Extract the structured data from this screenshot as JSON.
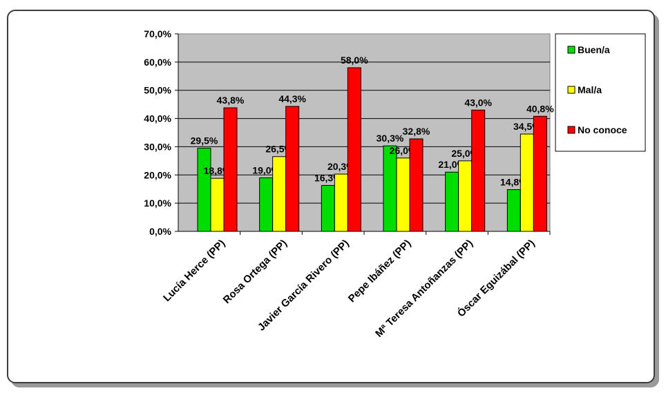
{
  "chart_data": {
    "type": "bar",
    "categories": [
      "Lucía Herce (PP)",
      "Rosa Ortega (PP)",
      "Javier García Rivero (PP)",
      "Pepe Ibáñez (PP)",
      "Mª Teresa Antoñanzas (PP)",
      "Óscar Eguizábal (PP)"
    ],
    "series": [
      {
        "name": "Buen/a",
        "color": "#00dd00",
        "values": [
          29.5,
          19.0,
          16.3,
          30.3,
          21.0,
          14.8
        ],
        "labels": [
          "29,5%",
          "19,0%",
          "16,3%",
          "30,3%",
          "21,0%",
          "14,8%"
        ]
      },
      {
        "name": "Mal/a",
        "color": "#ffff00",
        "values": [
          18.8,
          26.5,
          20.3,
          26.0,
          25.0,
          34.5
        ],
        "labels": [
          "18,8%",
          "26,5%",
          "20,3%",
          "26,0%",
          "25,0%",
          "34,5%"
        ]
      },
      {
        "name": "No conoce",
        "color": "#ff0000",
        "values": [
          43.8,
          44.3,
          58.0,
          32.8,
          43.0,
          40.8
        ],
        "labels": [
          "43,8%",
          "44,3%",
          "58,0%",
          "32,8%",
          "43,0%",
          "40,8%"
        ]
      }
    ],
    "yticks": [
      "0,0%",
      "10,0%",
      "20,0%",
      "30,0%",
      "40,0%",
      "50,0%",
      "60,0%",
      "70,0%"
    ],
    "ylim": [
      0,
      70
    ],
    "grid": true,
    "legend": "right",
    "plot_background": "#c0c0c0"
  }
}
